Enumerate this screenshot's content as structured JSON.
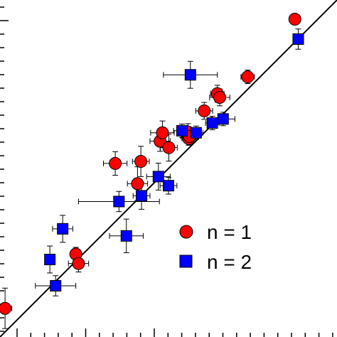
{
  "chart_data": {
    "type": "scatter",
    "xlim": [
      0,
      1
    ],
    "ylim": [
      0,
      1
    ],
    "grid": false,
    "legend_position": "bottom-right",
    "reference_line": {
      "type": "diagonal",
      "from": [
        0,
        0
      ],
      "to": [
        1,
        1
      ]
    },
    "series": [
      {
        "name": "n = 1",
        "marker": "circle",
        "color": "#ff0000",
        "points": [
          {
            "x": 0.015,
            "y": 0.085,
            "xerr": 0.02,
            "yerr": 0.06
          },
          {
            "x": 0.225,
            "y": 0.246,
            "xerr": 0.015,
            "yerr": 0.02
          },
          {
            "x": 0.233,
            "y": 0.218,
            "xerr": 0.03,
            "yerr": 0.025
          },
          {
            "x": 0.342,
            "y": 0.515,
            "xerr": 0.035,
            "yerr": 0.035
          },
          {
            "x": 0.408,
            "y": 0.455,
            "xerr": 0.03,
            "yerr": 0.05
          },
          {
            "x": 0.418,
            "y": 0.521,
            "xerr": 0.025,
            "yerr": 0.045
          },
          {
            "x": 0.475,
            "y": 0.581,
            "xerr": 0.03,
            "yerr": 0.03
          },
          {
            "x": 0.482,
            "y": 0.606,
            "xerr": 0.035,
            "yerr": 0.035
          },
          {
            "x": 0.501,
            "y": 0.562,
            "xerr": 0.025,
            "yerr": 0.04
          },
          {
            "x": 0.558,
            "y": 0.608,
            "xerr": 0.02,
            "yerr": 0.025
          },
          {
            "x": 0.56,
            "y": 0.589,
            "xerr": 0.02,
            "yerr": 0.02
          },
          {
            "x": 0.562,
            "y": 0.595,
            "xerr": 0.025,
            "yerr": 0.025
          },
          {
            "x": 0.606,
            "y": 0.671,
            "xerr": 0.025,
            "yerr": 0.025
          },
          {
            "x": 0.645,
            "y": 0.722,
            "xerr": 0.02,
            "yerr": 0.025
          },
          {
            "x": 0.652,
            "y": 0.711,
            "xerr": 0.03,
            "yerr": 0.025
          },
          {
            "x": 0.735,
            "y": 0.772,
            "xerr": 0.02,
            "yerr": 0.02
          },
          {
            "x": 0.875,
            "y": 0.943,
            "xerr": 0.01,
            "yerr": 0.015
          }
        ]
      },
      {
        "name": "n = 2",
        "marker": "square",
        "color": "#0000ff",
        "points": [
          {
            "x": 0.148,
            "y": 0.23,
            "xerr": 0.015,
            "yerr": 0.04
          },
          {
            "x": 0.165,
            "y": 0.152,
            "xerr": 0.06,
            "yerr": 0.03
          },
          {
            "x": 0.186,
            "y": 0.321,
            "xerr": 0.03,
            "yerr": 0.04
          },
          {
            "x": 0.353,
            "y": 0.402,
            "xerr": 0.12,
            "yerr": 0.03
          },
          {
            "x": 0.375,
            "y": 0.3,
            "xerr": 0.05,
            "yerr": 0.05
          },
          {
            "x": 0.42,
            "y": 0.419,
            "xerr": 0.025,
            "yerr": 0.04
          },
          {
            "x": 0.47,
            "y": 0.476,
            "xerr": 0.035,
            "yerr": 0.04
          },
          {
            "x": 0.5,
            "y": 0.449,
            "xerr": 0.025,
            "yerr": 0.025
          },
          {
            "x": 0.54,
            "y": 0.612,
            "xerr": 0.025,
            "yerr": 0.02
          },
          {
            "x": 0.565,
            "y": 0.778,
            "xerr": 0.08,
            "yerr": 0.04
          },
          {
            "x": 0.582,
            "y": 0.606,
            "xerr": 0.02,
            "yerr": 0.02
          },
          {
            "x": 0.63,
            "y": 0.635,
            "xerr": 0.02,
            "yerr": 0.02
          },
          {
            "x": 0.662,
            "y": 0.647,
            "xerr": 0.035,
            "yerr": 0.02
          },
          {
            "x": 0.885,
            "y": 0.884,
            "xerr": 0.015,
            "yerr": 0.03
          }
        ]
      }
    ]
  }
}
